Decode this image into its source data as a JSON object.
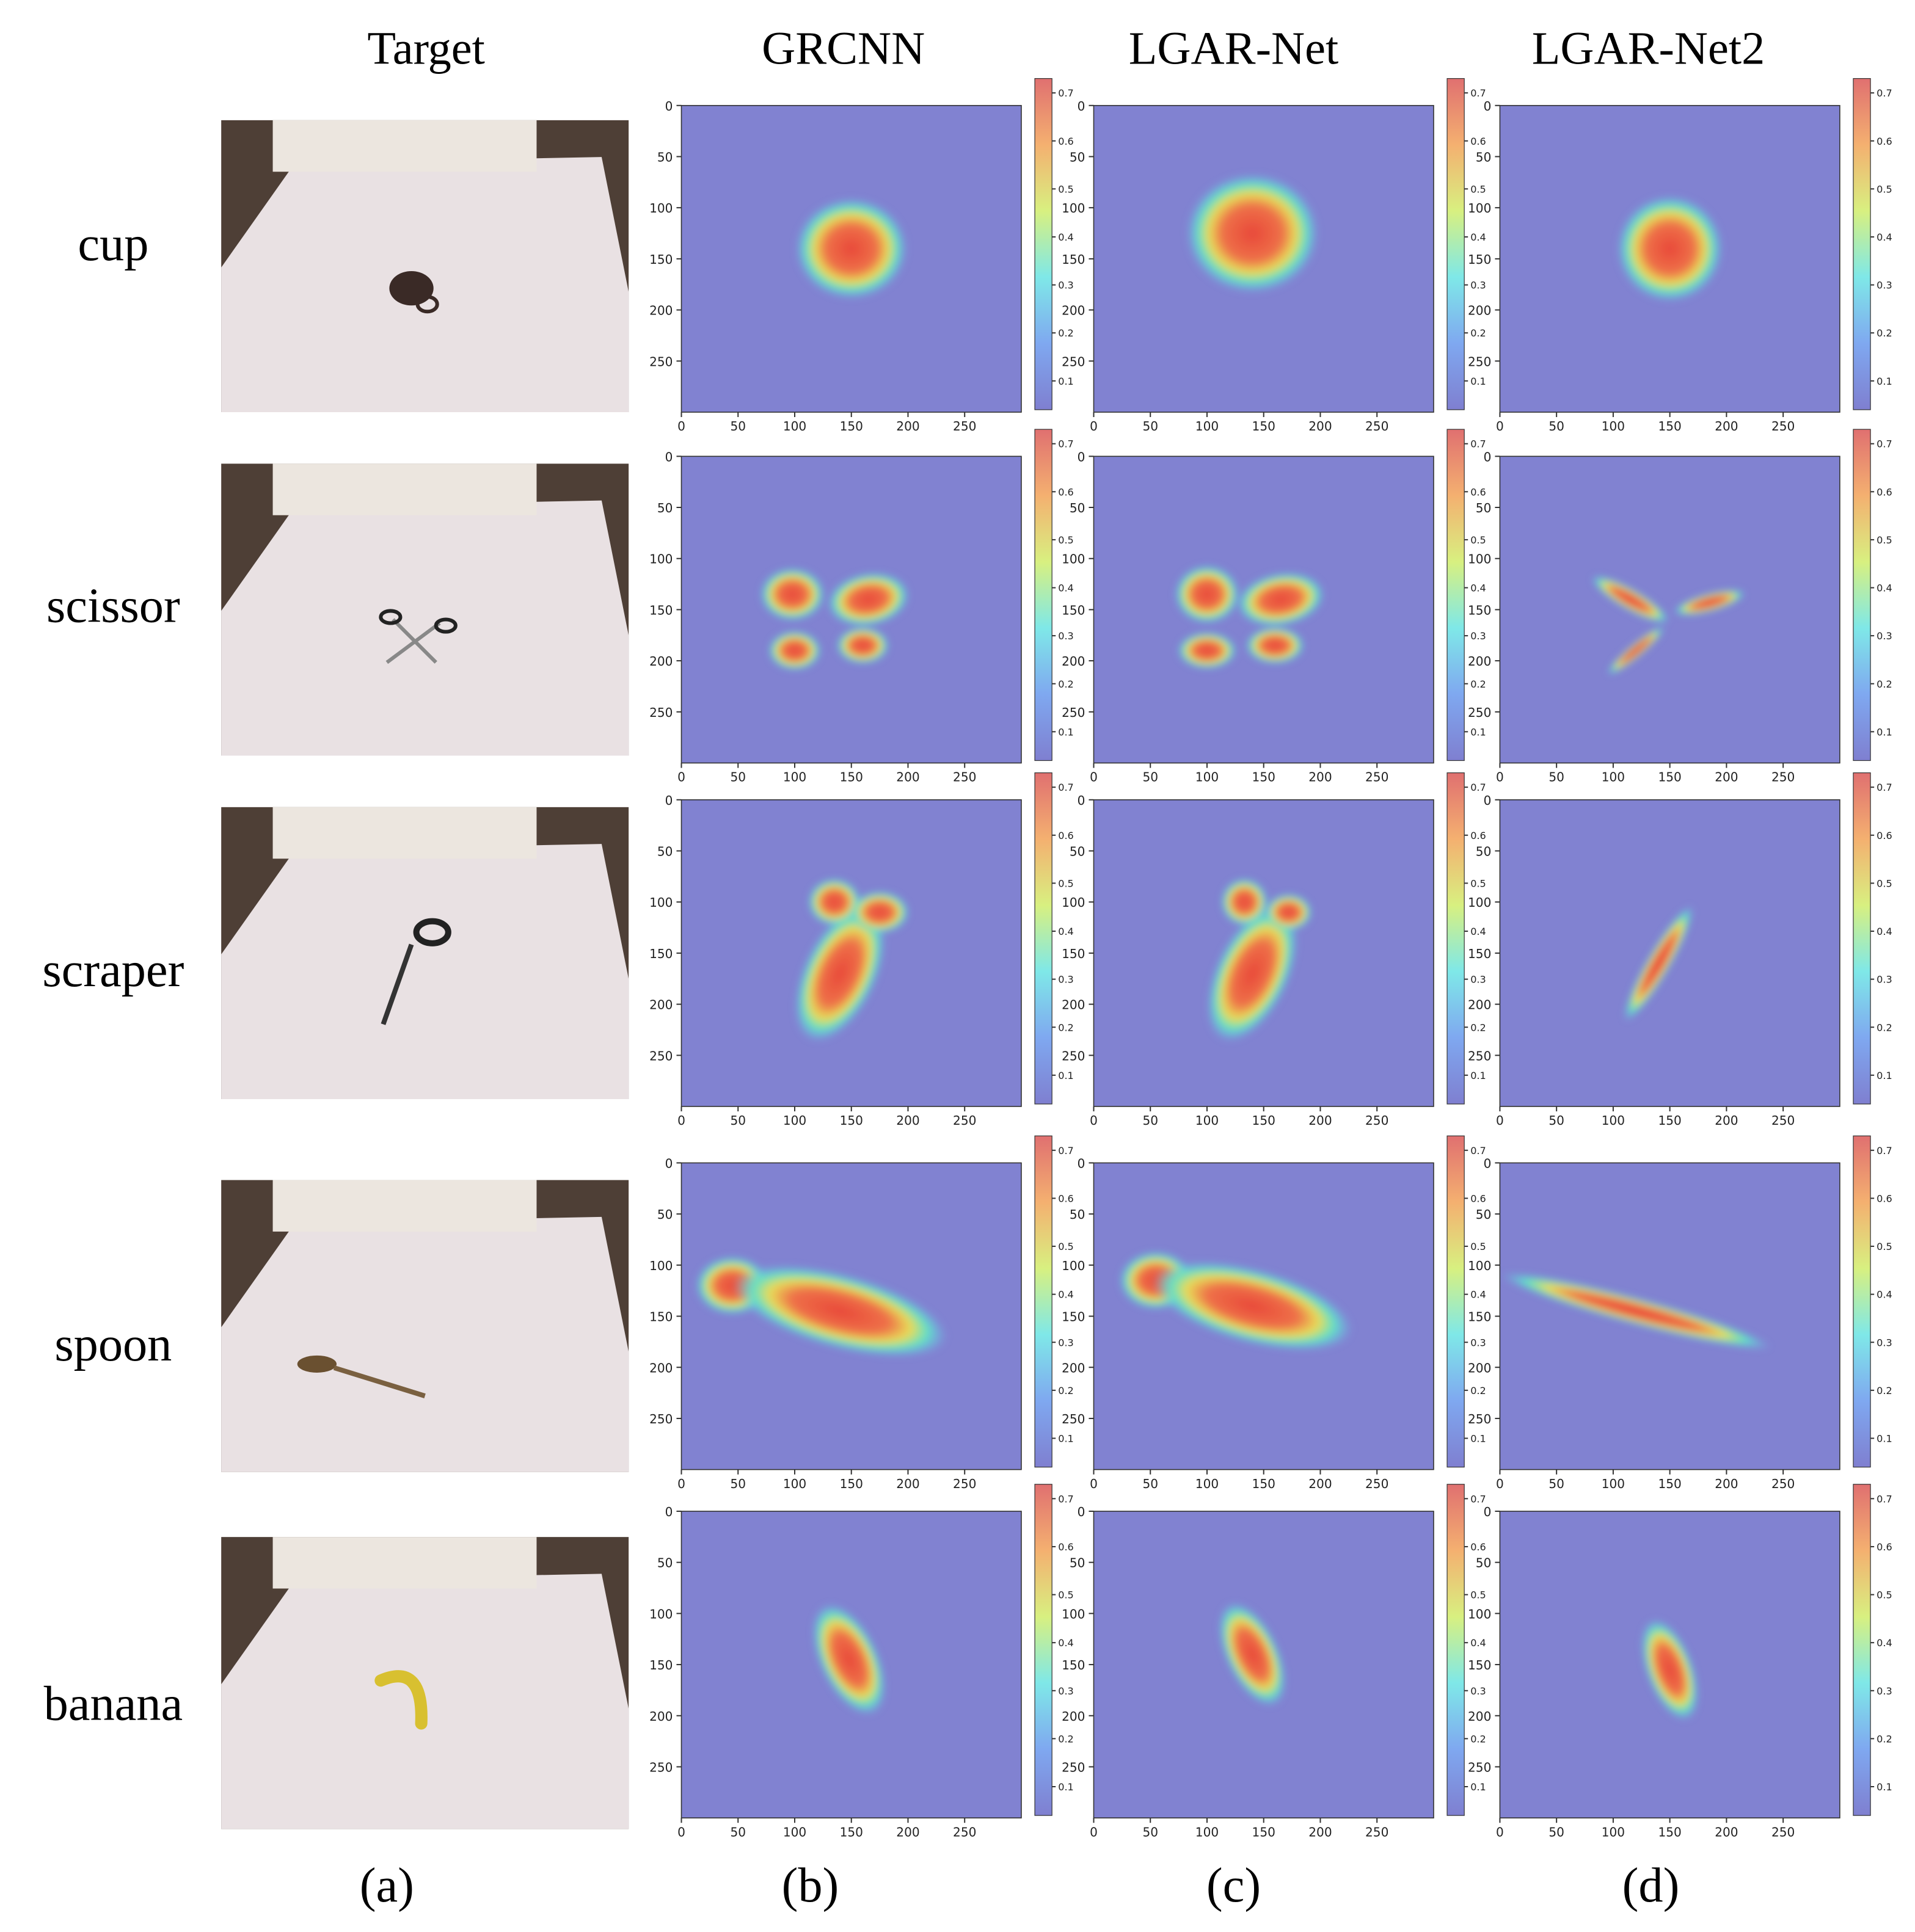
{
  "columns": [
    "Target",
    "GRCNN",
    "LGAR-Net",
    "LGAR-Net2"
  ],
  "rows": [
    "cup",
    "scissor",
    "scraper",
    "spoon",
    "banana"
  ],
  "panel_labels": [
    "(a)",
    "(b)",
    "(c)",
    "(d)"
  ],
  "axis_range": [
    0,
    300
  ],
  "axis_ticks": [
    0,
    50,
    100,
    150,
    200,
    250
  ],
  "colorbar_range": [
    0.04,
    0.73
  ],
  "colorbar_ticks": [
    0.1,
    0.2,
    0.3,
    0.4,
    0.5,
    0.6,
    0.7
  ]
}
